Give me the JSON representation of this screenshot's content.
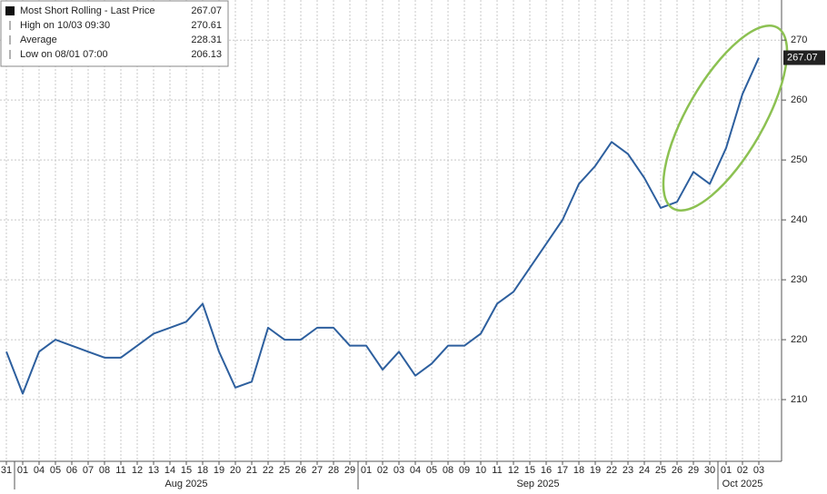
{
  "chart_data": {
    "type": "line",
    "legend": {
      "items": [
        {
          "name": "Most Short Rolling - Last Price",
          "value": 267.07
        },
        {
          "name": "High on 10/03 09:30",
          "value": 270.61
        },
        {
          "name": "Average",
          "value": 228.31
        },
        {
          "name": "Low on 08/01 07:00",
          "value": 206.13
        }
      ]
    },
    "color": "#2d5f9e",
    "x_groups": [
      {
        "label": null,
        "categories": [
          "31"
        ],
        "values": [
          218
        ]
      },
      {
        "label": "Aug 2025",
        "categories": [
          "01",
          "04",
          "05",
          "06",
          "07",
          "08",
          "11",
          "12",
          "13",
          "14",
          "15",
          "18",
          "19",
          "20",
          "21",
          "22",
          "25",
          "26",
          "27",
          "28",
          "29"
        ],
        "values": [
          211,
          218,
          220,
          219,
          218,
          217,
          217,
          219,
          221,
          222,
          223,
          226,
          218,
          212,
          213,
          222,
          220,
          220,
          222,
          222,
          219
        ]
      },
      {
        "label": "Sep 2025",
        "categories": [
          "01",
          "02",
          "03",
          "04",
          "05",
          "08",
          "09",
          "10",
          "11",
          "12",
          "15",
          "16",
          "17",
          "18",
          "19",
          "22",
          "23",
          "24",
          "25",
          "26",
          "29",
          "30"
        ],
        "values": [
          219,
          215,
          218,
          214,
          216,
          219,
          219,
          221,
          226,
          228,
          232,
          236,
          240,
          246,
          249,
          253,
          251,
          247,
          242,
          243,
          248,
          246
        ]
      },
      {
        "label": "Oct 2025",
        "categories": [
          "01",
          "02",
          "03"
        ],
        "values": [
          252,
          261,
          267.07
        ]
      }
    ],
    "ylim": [
      199.7,
      276.7
    ],
    "yticks": [
      210,
      220,
      230,
      240,
      250,
      260,
      270
    ],
    "grid": true
  }
}
